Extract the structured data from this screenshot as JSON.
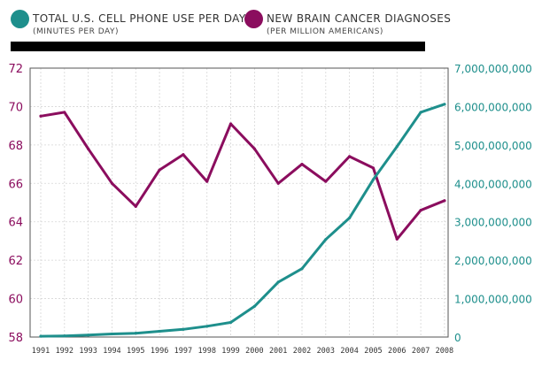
{
  "legend": {
    "cell": {
      "title": "TOTAL U.S. CELL PHONE USE PER DAY",
      "subtitle": "(MINUTES PER DAY)",
      "color": "#1e8f8c"
    },
    "cancer": {
      "title": "NEW BRAIN CANCER DIAGNOSES",
      "subtitle": "(PER MILLION AMERICANS)",
      "color": "#8b0d5e"
    }
  },
  "chart_data": {
    "type": "line",
    "x": [
      1991,
      1992,
      1993,
      1994,
      1995,
      1996,
      1997,
      1998,
      1999,
      2000,
      2001,
      2002,
      2003,
      2004,
      2005,
      2006,
      2007,
      2008
    ],
    "y_left": {
      "ylim": [
        58,
        72
      ],
      "ticks": [
        58,
        60,
        62,
        64,
        66,
        68,
        70,
        72
      ],
      "color": "#8b0d5e"
    },
    "y_right": {
      "ylim": [
        0,
        7000000000
      ],
      "ticks": [
        0,
        1000000000,
        2000000000,
        3000000000,
        4000000000,
        5000000000,
        6000000000,
        7000000000
      ],
      "tick_labels": [
        "0",
        "1,000,000,000",
        "2,000,000,000",
        "3,000,000,000",
        "4,000,000,000",
        "5,000,000,000",
        "6,000,000,000",
        "7,000,000,000"
      ],
      "color": "#1e8f8c"
    },
    "series": [
      {
        "key": "cancer",
        "axis": "left",
        "color": "#8b0d5e",
        "values": [
          69.5,
          69.7,
          67.8,
          66.0,
          64.8,
          66.7,
          67.5,
          66.1,
          69.1,
          67.8,
          66.0,
          67.0,
          66.1,
          67.4,
          66.8,
          63.1,
          64.6,
          65.1
        ]
      },
      {
        "key": "cell",
        "axis": "right",
        "color": "#1e8f8c",
        "values": [
          20000000,
          30000000,
          50000000,
          80000000,
          100000000,
          150000000,
          200000000,
          280000000,
          380000000,
          800000000,
          1430000000,
          1780000000,
          2540000000,
          3100000000,
          4100000000,
          4960000000,
          5850000000,
          6060000000
        ]
      }
    ],
    "grid": true
  }
}
